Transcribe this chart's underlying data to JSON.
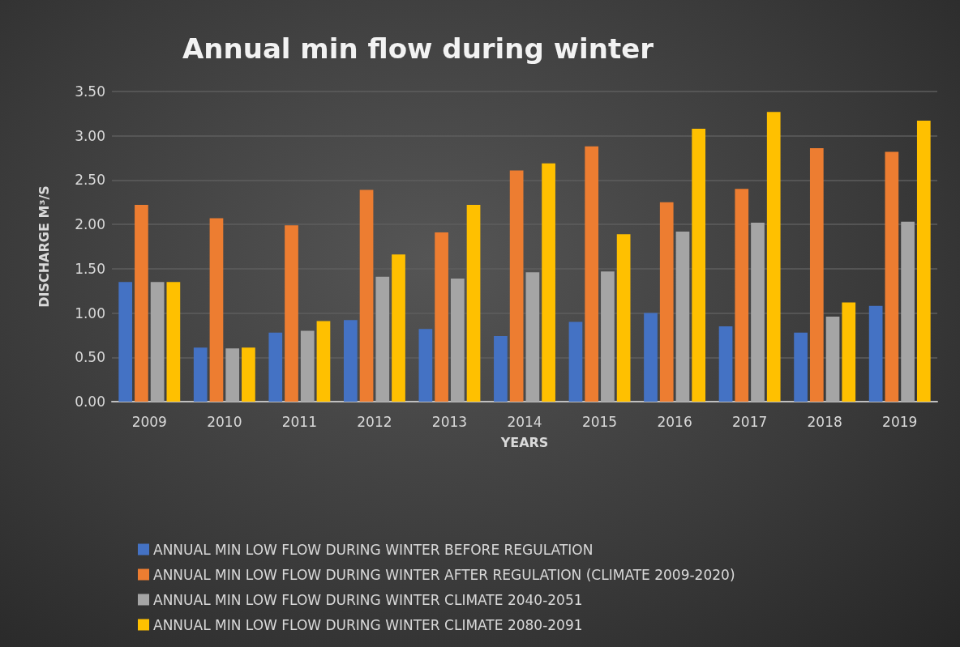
{
  "chart_data": {
    "type": "bar",
    "title": "Annual min flow during winter",
    "xlabel": "YEARS",
    "ylabel": "DISCHARGE M³/S",
    "categories": [
      "2009",
      "2010",
      "2011",
      "2012",
      "2013",
      "2014",
      "2015",
      "2016",
      "2017",
      "2018",
      "2019"
    ],
    "series": [
      {
        "name": "ANNUAL MIN LOW FLOW DURING WINTER BEFORE REGULATION",
        "color": "#4472c4",
        "values": [
          1.35,
          0.61,
          0.78,
          0.92,
          0.82,
          0.74,
          0.9,
          1.0,
          0.85,
          0.78,
          1.08
        ]
      },
      {
        "name": "ANNUAL MIN LOW FLOW DURING WINTER AFTER REGULATION (CLIMATE 2009-2020)",
        "color": "#ed7d31",
        "values": [
          2.22,
          2.07,
          1.99,
          2.39,
          1.91,
          2.61,
          2.88,
          2.25,
          2.4,
          2.86,
          2.82
        ]
      },
      {
        "name": "ANNUAL MIN LOW FLOW DURING WINTER CLIMATE 2040-2051",
        "color": "#a5a5a5",
        "values": [
          1.35,
          0.6,
          0.8,
          1.41,
          1.39,
          1.46,
          1.47,
          1.92,
          2.02,
          0.96,
          2.03
        ]
      },
      {
        "name": "ANNUAL MIN LOW FLOW DURING WINTER CLIMATE 2080-2091",
        "color": "#ffc000",
        "values": [
          1.35,
          0.61,
          0.91,
          1.66,
          2.22,
          2.69,
          1.89,
          3.08,
          3.27,
          1.12,
          3.17
        ]
      }
    ],
    "ylim": [
      0,
      3.5
    ],
    "yticks": [
      {
        "value": 0,
        "label": "0.00"
      },
      {
        "value": 0.5,
        "label": "0.50"
      },
      {
        "value": 1,
        "label": "1.00"
      },
      {
        "value": 1.5,
        "label": "1.50"
      },
      {
        "value": 2,
        "label": "2.00"
      },
      {
        "value": 2.5,
        "label": "2.50"
      },
      {
        "value": 3,
        "label": "3.00"
      },
      {
        "value": 3.5,
        "label": "3.50"
      }
    ],
    "grid": "y",
    "legend": "bottom"
  }
}
